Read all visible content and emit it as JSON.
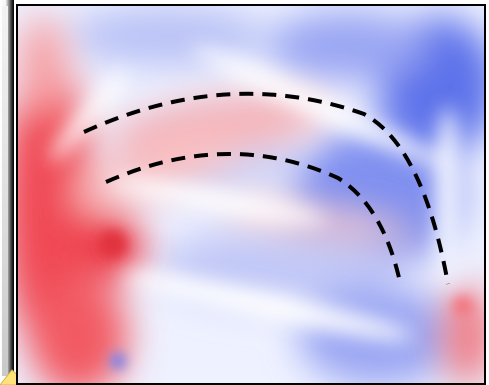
{
  "image": {
    "left_strip_fill": "#f4f4f4",
    "panel_border_color": "#000000",
    "palette": {
      "red": "#f2444d",
      "blue": "#4a61e8",
      "white": "#ffffff",
      "marker": "#ffe27a"
    },
    "dashed_arcs": 2
  }
}
